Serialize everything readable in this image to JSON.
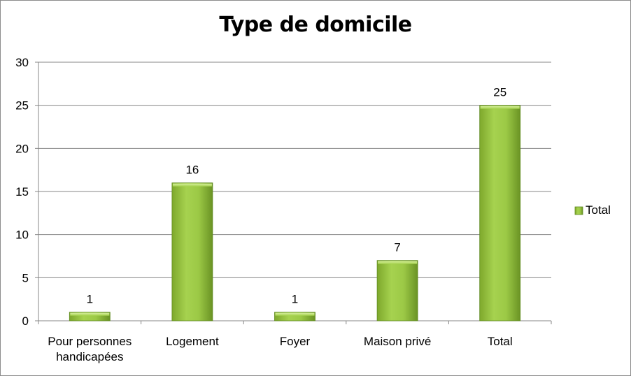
{
  "chart_data": {
    "type": "bar",
    "title": "Type de domicile",
    "categories": [
      "Pour personnes handicapées",
      "Logement",
      "Foyer",
      "Maison privé",
      "Total"
    ],
    "category_lines": [
      [
        "Pour personnes",
        "handicapées"
      ],
      [
        "Logement"
      ],
      [
        "Foyer"
      ],
      [
        "Maison privé"
      ],
      [
        "Total"
      ]
    ],
    "series": [
      {
        "name": "Total",
        "values": [
          1,
          16,
          1,
          7,
          25
        ]
      }
    ],
    "xlabel": "",
    "ylabel": "",
    "ylim": [
      0,
      30
    ],
    "yticks": [
      0,
      5,
      10,
      15,
      20,
      25,
      30
    ],
    "grid": true,
    "legend_position": "right",
    "data_labels": true,
    "colors": {
      "bar_light": "#a6d24f",
      "bar_dark": "#6f9a26",
      "grid": "#878787"
    }
  }
}
